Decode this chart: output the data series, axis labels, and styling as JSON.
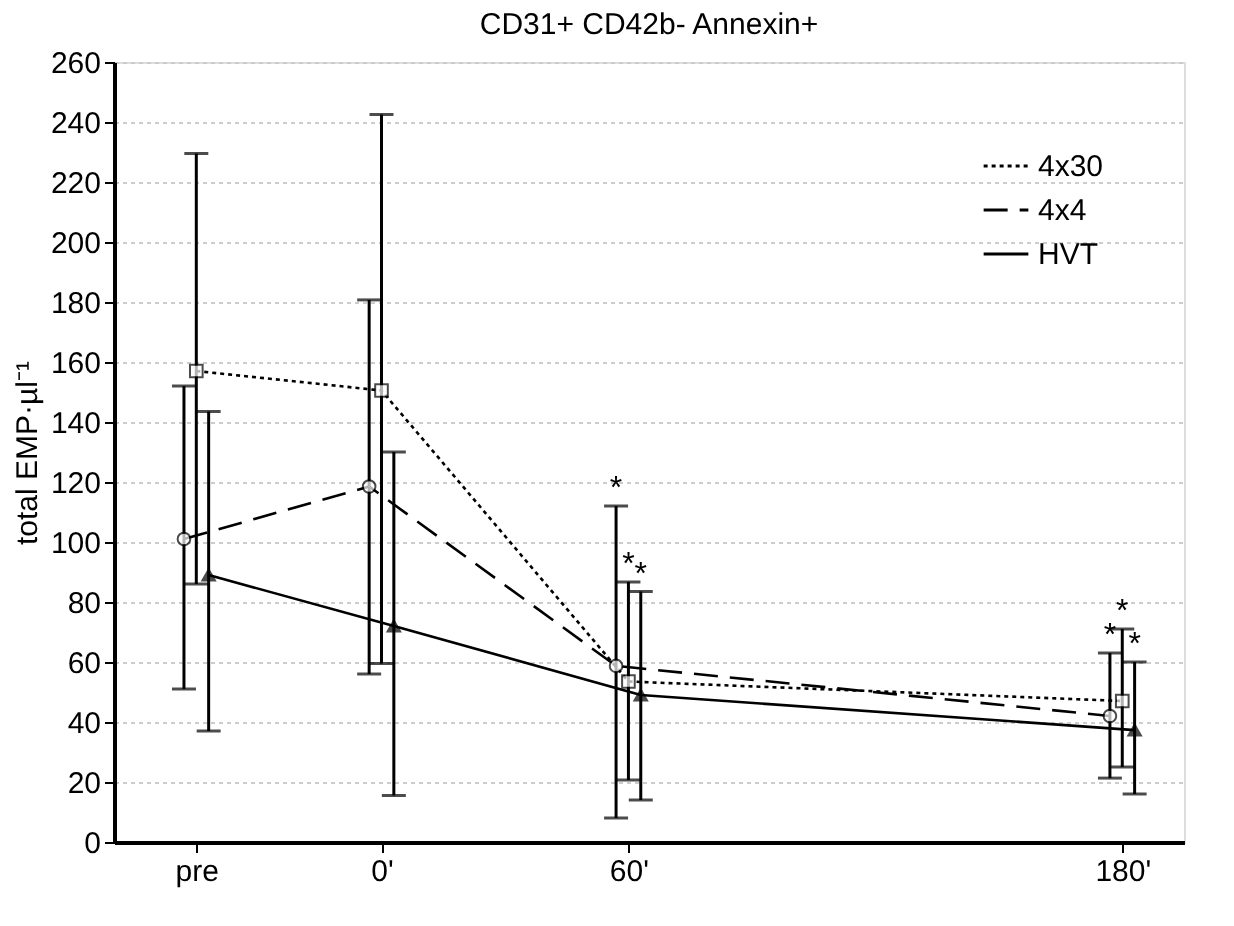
{
  "chart_data": {
    "type": "line",
    "title": "CD31+ CD42b- Annexin+",
    "ylabel": "total EMP·µl⁻¹",
    "xlim": [
      -65,
      195
    ],
    "xticks": [
      {
        "value": -45,
        "label": "pre"
      },
      {
        "value": 0,
        "label": "0'"
      },
      {
        "value": 60,
        "label": "60'"
      },
      {
        "value": 180,
        "label": "180'"
      }
    ],
    "ylim": [
      0,
      260
    ],
    "yticks": [
      0,
      20,
      40,
      60,
      80,
      100,
      120,
      140,
      160,
      180,
      200,
      220,
      240,
      260
    ],
    "grid": "y",
    "legend": "top right",
    "series": [
      {
        "name": "4x30",
        "color": "#000000",
        "line_style": "dotted",
        "marker": "square",
        "x": [
          -45,
          0,
          60,
          180
        ],
        "values": [
          157,
          150.5,
          53.5,
          47
        ],
        "errors": [
          [
            86,
            229.5
          ],
          [
            59.5,
            242.5
          ],
          [
            20.7,
            86.7
          ],
          [
            25,
            71
          ]
        ]
      },
      {
        "name": "4x4",
        "color": "#000000",
        "line_style": "dashed",
        "marker": "circle",
        "x": [
          -48,
          -3,
          57,
          177
        ],
        "values": [
          101,
          118.5,
          58.7,
          42
        ],
        "errors": [
          [
            51,
            152
          ],
          [
            56,
            180.7
          ],
          [
            8,
            112
          ],
          [
            21.3,
            63
          ]
        ]
      },
      {
        "name": "HVT",
        "color": "#000000",
        "line_style": "solid",
        "marker": "triangle",
        "x": [
          -42,
          3,
          63,
          183
        ],
        "values": [
          89,
          72,
          49,
          37.3
        ],
        "errors": [
          [
            37,
            143.5
          ],
          [
            15.5,
            130
          ],
          [
            14,
            83.5
          ],
          [
            16,
            60
          ]
        ]
      }
    ],
    "annotations": [
      {
        "text": "*",
        "x": 57,
        "y": 112
      },
      {
        "text": "*",
        "x": 60,
        "y": 86.7
      },
      {
        "text": "*",
        "x": 63,
        "y": 83.5
      },
      {
        "text": "*",
        "x": 177,
        "y": 63
      },
      {
        "text": "*",
        "x": 180,
        "y": 71
      },
      {
        "text": "*",
        "x": 183,
        "y": 60
      }
    ]
  }
}
